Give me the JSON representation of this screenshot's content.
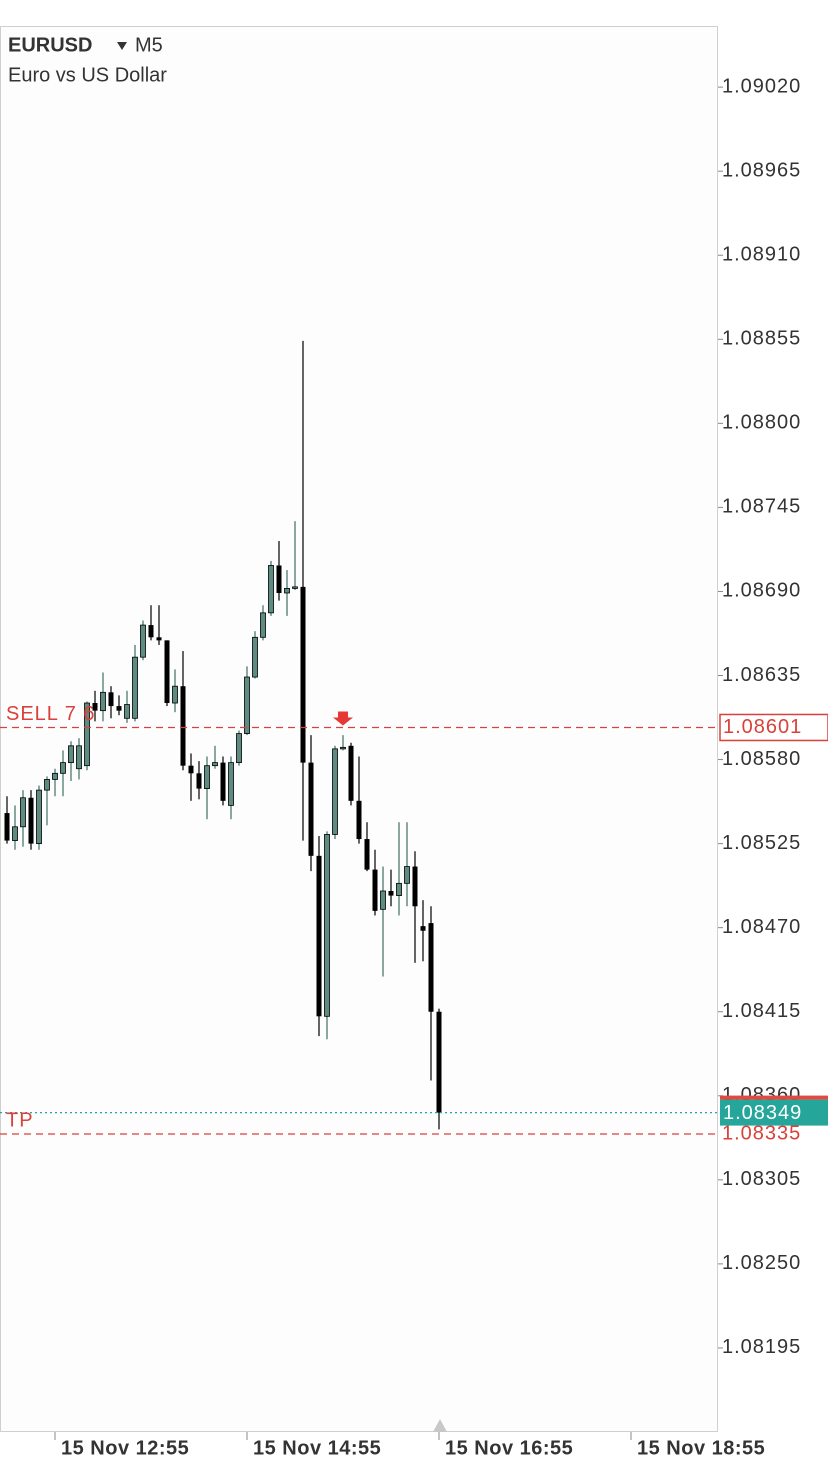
{
  "chart_data": {
    "type": "candlestick",
    "title": "EURUSD",
    "timeframe": "M5",
    "subtitle": "Euro vs US Dollar",
    "categories": [
      null,
      null,
      null,
      null,
      null,
      null,
      "15 Nov 12:55",
      null,
      null,
      null,
      null,
      null,
      null,
      null,
      null,
      null,
      null,
      null,
      null,
      null,
      null,
      null,
      null,
      null,
      null,
      null,
      null,
      null,
      null,
      null,
      "15 Nov 14:55",
      null,
      null,
      null,
      null,
      null,
      null,
      null,
      null,
      null,
      null,
      null,
      null,
      null,
      null,
      null,
      null,
      null,
      null,
      null,
      null,
      null,
      null,
      null,
      "15 Nov 16:55",
      null,
      null,
      null,
      null,
      null,
      null,
      null,
      null,
      null,
      null,
      null,
      null,
      null,
      null,
      null,
      null,
      null,
      null,
      null,
      null,
      null,
      null,
      null,
      "15 Nov 18:55"
    ],
    "open": [
      1.08545,
      1.08527,
      1.08536,
      1.08555,
      1.08525,
      1.0856,
      1.08567,
      1.08571,
      1.08578,
      1.08574,
      1.08576,
      1.08617,
      1.08612,
      1.08624,
      1.08615,
      1.08607,
      1.08607,
      1.08647,
      1.08668,
      1.0866,
      1.08658,
      1.08617,
      1.08628,
      1.08576,
      1.08571,
      1.08561,
      1.08576,
      1.08578,
      1.0855,
      1.08578,
      1.08597,
      1.08634,
      1.0866,
      1.08676,
      1.08707,
      1.08689,
      1.08692,
      1.08693,
      1.08578,
      1.08517,
      1.08412,
      1.08531,
      1.08587,
      1.08589,
      1.08553,
      1.08528,
      1.08508,
      1.08482,
      1.08494,
      1.08491,
      1.08499,
      1.0851,
      1.08471,
      1.08473,
      1.08415,
      null,
      null,
      null,
      null,
      null,
      null,
      null,
      null,
      null,
      null,
      null,
      null,
      null,
      null,
      null,
      null,
      null,
      null,
      null,
      null,
      null,
      null,
      null,
      null
    ],
    "high": [
      1.08556,
      1.0855,
      1.0856,
      1.0856,
      1.08563,
      1.08569,
      1.08574,
      1.08586,
      1.08592,
      1.08594,
      1.08618,
      1.08625,
      1.08637,
      1.08628,
      1.08622,
      1.08625,
      1.08655,
      1.08671,
      1.08681,
      1.08681,
      1.08658,
      1.08639,
      1.08651,
      1.08584,
      1.08579,
      1.08582,
      1.08589,
      1.08582,
      1.08582,
      1.08599,
      1.08641,
      1.08664,
      1.08681,
      1.0871,
      1.08723,
      1.08704,
      1.08736,
      1.08854,
      1.08596,
      1.0853,
      1.08533,
      1.08589,
      1.08596,
      1.08591,
      1.08582,
      1.08539,
      1.08521,
      1.0851,
      1.08508,
      1.08539,
      1.08539,
      1.0852,
      1.08488,
      1.08484,
      1.08417,
      null,
      null,
      null,
      null,
      null,
      null,
      null,
      null,
      null,
      null,
      null,
      null,
      null,
      null,
      null,
      null,
      null,
      null,
      null,
      null,
      null,
      null,
      null,
      null
    ],
    "low": [
      1.08525,
      1.08521,
      1.08523,
      1.08521,
      1.08521,
      1.08537,
      1.08556,
      1.08556,
      1.08566,
      1.08567,
      1.08573,
      1.08605,
      1.08605,
      1.08607,
      1.08609,
      1.08604,
      1.08605,
      1.08645,
      1.08658,
      1.08655,
      1.08615,
      1.08611,
      1.08573,
      1.08553,
      1.08554,
      1.08541,
      1.08574,
      1.0855,
      1.08541,
      1.08576,
      1.08596,
      1.08633,
      1.08658,
      1.08674,
      1.08684,
      1.08674,
      1.08691,
      1.08527,
      1.08507,
      1.08399,
      1.08397,
      1.08528,
      1.08586,
      1.0855,
      1.08525,
      1.08507,
      1.08478,
      1.08438,
      1.08484,
      1.08478,
      1.08484,
      1.08447,
      1.08448,
      1.0837,
      1.08338,
      null,
      null,
      null,
      null,
      null,
      null,
      null,
      null,
      null,
      null,
      null,
      null,
      null,
      null,
      null,
      null,
      null,
      null,
      null,
      null,
      null,
      null,
      null,
      null
    ],
    "close": [
      1.08527,
      1.08536,
      1.08555,
      1.08525,
      1.0856,
      1.08567,
      1.08571,
      1.08578,
      1.08589,
      1.08589,
      1.08617,
      1.08612,
      1.08624,
      1.08615,
      1.08612,
      1.08616,
      1.08647,
      1.08668,
      1.0866,
      1.08658,
      1.08617,
      1.08628,
      1.08576,
      1.08571,
      1.08561,
      1.08576,
      1.08578,
      1.08553,
      1.08578,
      1.08597,
      1.08634,
      1.0866,
      1.08676,
      1.08707,
      1.08689,
      1.08692,
      1.08693,
      1.08578,
      1.08517,
      1.08412,
      1.08531,
      1.08587,
      1.08588,
      1.08553,
      1.08528,
      1.08508,
      1.08481,
      1.08494,
      1.08491,
      1.08499,
      1.0851,
      1.08484,
      1.08468,
      1.08415,
      1.08349,
      null,
      null,
      null,
      null,
      null,
      null,
      null,
      null,
      null,
      null,
      null,
      null,
      null,
      null,
      null,
      null,
      null,
      null,
      null,
      null,
      null,
      null,
      null,
      null
    ],
    "colors": {
      "up": "#5e8c80",
      "down": "#000000"
    },
    "ylim": [
      1.0814,
      1.0906
    ],
    "yticks": [
      {
        "value": 1.0902,
        "label": "1.09020"
      },
      1.08965,
      {
        "value": 1.0891,
        "label": "1.08910"
      },
      1.08855,
      {
        "value": 1.088,
        "label": "1.08800"
      },
      1.08745,
      {
        "value": 1.0869,
        "label": "1.08690"
      },
      1.08635,
      {
        "value": 1.0858,
        "label": "1.08580"
      },
      1.08525,
      {
        "value": 1.0847,
        "label": "1.08470"
      },
      1.08415,
      {
        "value": 1.0836,
        "label": "1.08360"
      },
      1.08305,
      {
        "value": 1.0825,
        "label": "1.08250"
      },
      1.08195
    ],
    "levels": [
      {
        "label": "SELL 7 6",
        "price": 1.08601,
        "color": "#d9413a",
        "style": "box"
      },
      {
        "price": 1.08349,
        "color": "#26a69a",
        "style": "filled"
      },
      {
        "label": "TP",
        "price": 1.08335,
        "color": "#d9413a",
        "style": "text"
      }
    ]
  }
}
